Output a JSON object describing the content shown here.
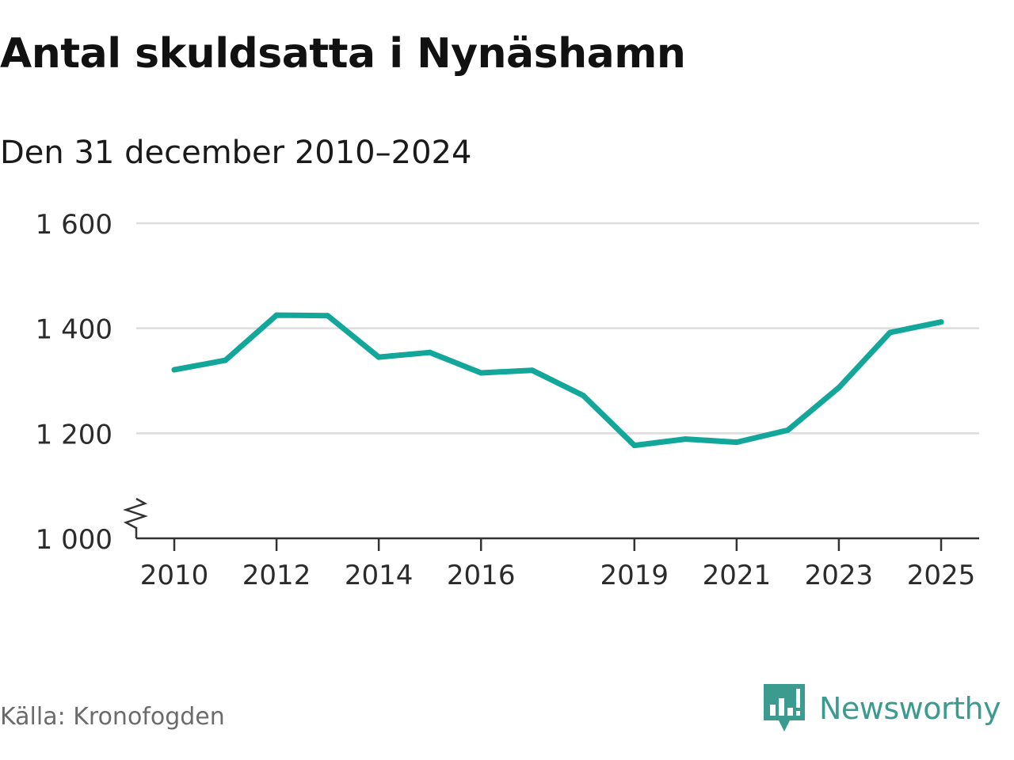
{
  "title": "Antal skuldsatta i Nynäshamn",
  "subtitle": "Den 31 december 2010–2024",
  "source": "Källa: Kronofogden",
  "brand": "Newsworthy",
  "colors": {
    "line": "#13a69a",
    "grid": "#dddddd",
    "axis": "#333333",
    "brand": "#3b9b8f"
  },
  "chart_data": {
    "type": "line",
    "title": "Antal skuldsatta i Nynäshamn",
    "subtitle": "Den 31 december 2010–2024",
    "xlabel": "",
    "ylabel": "",
    "x": [
      2010,
      2011,
      2012,
      2013,
      2014,
      2015,
      2016,
      2017,
      2018,
      2019,
      2020,
      2021,
      2022,
      2023,
      2024,
      2025
    ],
    "values": [
      1321,
      1339,
      1425,
      1424,
      1345,
      1354,
      1315,
      1320,
      1272,
      1177,
      1189,
      1183,
      1206,
      1287,
      1392,
      1412
    ],
    "ylim": [
      1000,
      1600
    ],
    "xlim": [
      2010,
      2025
    ],
    "yticks": [
      1000,
      1200,
      1400,
      1600
    ],
    "ytick_labels": [
      "1 000",
      "1 200",
      "1 400",
      "1 600"
    ],
    "xticks": [
      2010,
      2012,
      2014,
      2016,
      2019,
      2021,
      2023,
      2025
    ],
    "xtick_labels": [
      "2010",
      "2012",
      "2014",
      "2016",
      "2019",
      "2021",
      "2023",
      "2025"
    ],
    "grid": true,
    "axis_break": true,
    "legend": "none"
  }
}
